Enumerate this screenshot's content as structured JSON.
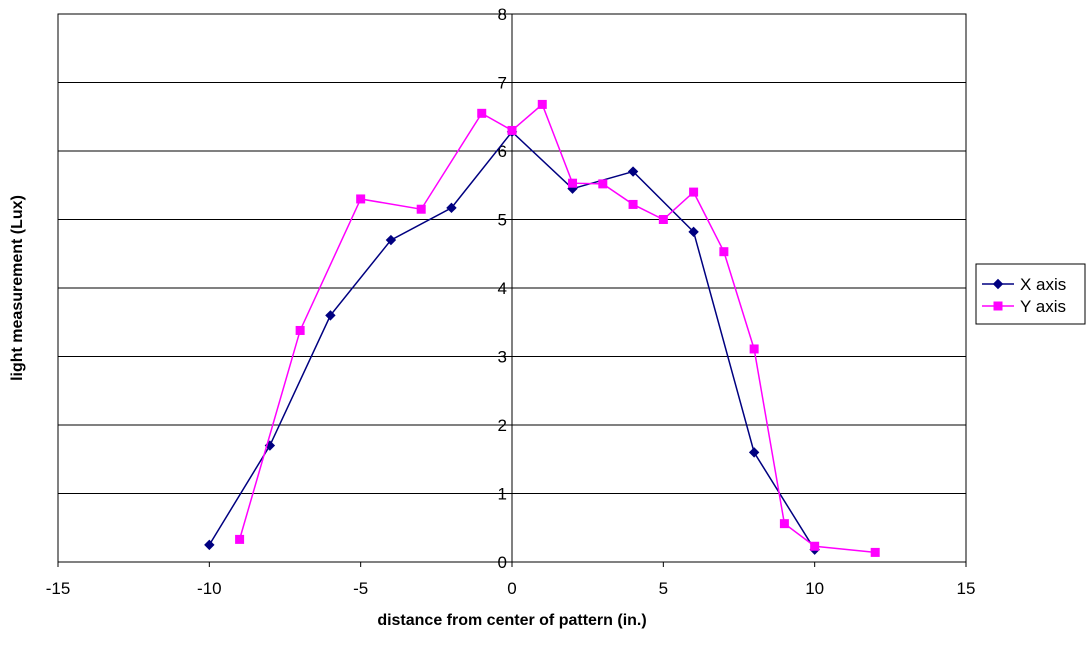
{
  "chart_data": {
    "type": "scatter",
    "title": "",
    "xlabel": "distance from center of pattern (in.)",
    "ylabel": "light measurement (Lux)",
    "xlim": [
      -15,
      15
    ],
    "ylim": [
      0,
      8
    ],
    "xticks": [
      -15,
      -10,
      -5,
      0,
      5,
      10,
      15
    ],
    "yticks": [
      0,
      1,
      2,
      3,
      4,
      5,
      6,
      7,
      8
    ],
    "grid": "horizontal",
    "legend_position": "right",
    "series": [
      {
        "name": "X axis",
        "color": "#000080",
        "marker": "diamond",
        "x": [
          -10,
          -8,
          -6,
          -4,
          -2,
          0,
          2,
          4,
          6,
          8,
          10
        ],
        "y": [
          0.25,
          1.7,
          3.6,
          4.7,
          5.17,
          6.28,
          5.45,
          5.7,
          4.82,
          1.6,
          0.18
        ]
      },
      {
        "name": "Y axis",
        "color": "#ff00ff",
        "marker": "square",
        "x": [
          -9,
          -7,
          -5,
          -3,
          -1,
          0,
          1,
          2,
          3,
          4,
          5,
          6,
          7,
          8,
          9,
          10,
          12
        ],
        "y": [
          0.33,
          3.38,
          5.3,
          5.15,
          6.55,
          6.3,
          6.68,
          5.53,
          5.52,
          5.22,
          5.0,
          5.4,
          4.53,
          3.11,
          0.56,
          0.23,
          0.14
        ]
      }
    ]
  }
}
